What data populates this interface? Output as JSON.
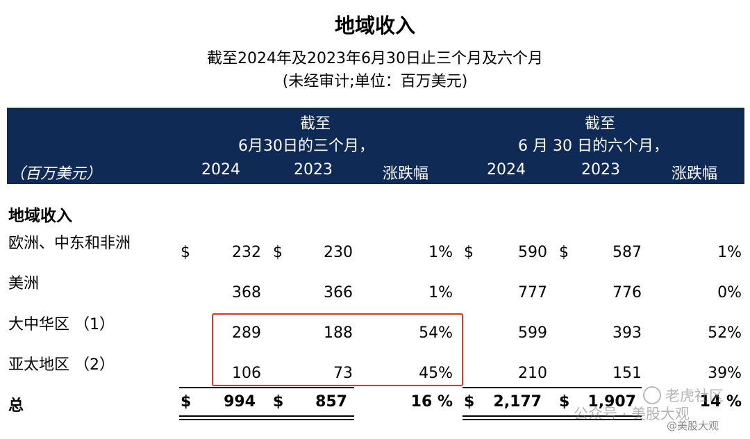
{
  "title": "地域收入",
  "subtitle1": "截至2024年及2023年6月30日止三个月及六个月",
  "subtitle2": "(未经审计;单位：百万美元)",
  "header": {
    "unit": "（百万美元）",
    "group1_line1": "截至",
    "group1_line2": "6月30日的三个月，",
    "group2_line1": "截至",
    "group2_line2": "6 月 30 日的六个月，",
    "col_2024a": "2024",
    "col_2023a": "2023",
    "col_changea": "涨跌幅",
    "col_2024b": "2024",
    "col_2023b": "2023",
    "col_changeb": "涨跌幅"
  },
  "section_title": "地域收入",
  "currency_symbol": "$",
  "rows": [
    {
      "label": "欧洲、中东和非洲",
      "q2024": "232",
      "q2023": "230",
      "qchg": "1%",
      "h2024": "590",
      "h2023": "587",
      "hchg": "1%"
    },
    {
      "label": "美洲",
      "q2024": "368",
      "q2023": "366",
      "qchg": "1%",
      "h2024": "777",
      "h2023": "776",
      "hchg": "0%"
    },
    {
      "label": "大中华区 （1）",
      "q2024": "289",
      "q2023": "188",
      "qchg": "54%",
      "h2024": "599",
      "h2023": "393",
      "hchg": "52%"
    },
    {
      "label": "亚太地区 （2）",
      "q2024": "106",
      "q2023": "73",
      "qchg": "45%",
      "h2024": "210",
      "h2023": "151",
      "hchg": "39%"
    }
  ],
  "total": {
    "label": "总",
    "q2024": "994",
    "q2023": "857",
    "qchg": "16 %",
    "h2024": "2,177",
    "h2023": "1,907",
    "hchg": "14 %"
  },
  "watermark": {
    "text1": "老虎社区",
    "text2": "公众号 · 美股大观",
    "text3": "@美股大观"
  },
  "colors": {
    "header_band": "#0f2a55",
    "highlight_box": "#e0362c"
  }
}
